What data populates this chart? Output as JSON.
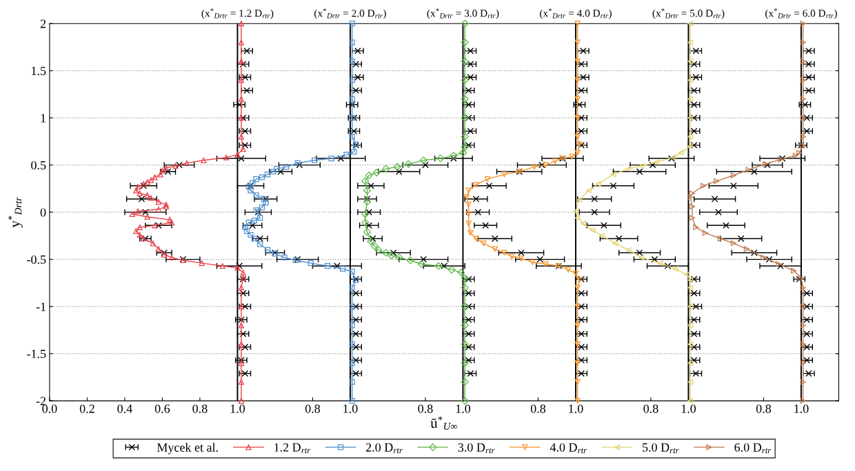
{
  "chart_data": [
    {
      "type": "line",
      "title": "(x$^{*}$$_{Drtr}$ = 1.2 D$_{rtr}$)",
      "xlabel": "ū$^{*}$$_{U∞}$",
      "ylabel": "y$^{*}$$_{Drtr}$",
      "xlim": [
        0,
        4.2
      ],
      "ylim": [
        -2,
        2
      ],
      "xticks": [
        {
          "value": 0,
          "label": "0.0"
        },
        {
          "value": 0.2,
          "label": "0.2"
        },
        {
          "value": 0.4,
          "label": "0.4"
        },
        {
          "value": 0.6,
          "label": "0.6"
        },
        {
          "value": 0.8,
          "label": "0.8"
        },
        {
          "value": 1.0,
          "label": "1.0"
        }
      ],
      "yticks": [
        -2,
        -1.5,
        -1,
        -0.5,
        0,
        0.5,
        1,
        1.5,
        2
      ],
      "grid": "y",
      "legend": "bottom",
      "line_style": "solid",
      "ref_lines": [
        {
          "axis": "x",
          "value": 1.0,
          "color": "#000000"
        }
      ],
      "series": [
        {
          "name": "Mycek et al.",
          "type": "scatter",
          "marker": "cross",
          "color": "#000000",
          "x": [
            1.05,
            1.03,
            1.04,
            1.05,
            1.01,
            1.03,
            1.04,
            1.04,
            1.02,
            0.69,
            0.63,
            0.5,
            0.49,
            0.51,
            0.58,
            0.51,
            0.61,
            0.71,
            1.01,
            1.03,
            1.03,
            1.04,
            1.02,
            1.03,
            1.04,
            1.02,
            1.04
          ],
          "values": [
            1.71,
            1.57,
            1.43,
            1.29,
            1.14,
            1.0,
            0.86,
            0.71,
            0.57,
            0.5,
            0.43,
            0.28,
            0.14,
            0,
            -0.14,
            -0.28,
            -0.43,
            -0.5,
            -0.57,
            -0.71,
            -0.86,
            -1.0,
            -1.14,
            -1.29,
            -1.43,
            -1.57,
            -1.71
          ],
          "xerrors": [
            0.03,
            0.03,
            0.03,
            0.03,
            0.03,
            0.03,
            0.03,
            0.03,
            0.13,
            0.08,
            0.04,
            0.07,
            0.08,
            0.11,
            0.07,
            0.03,
            0.04,
            0.09,
            0.12,
            0.03,
            0.03,
            0.03,
            0.03,
            0.03,
            0.03,
            0.03,
            0.03
          ]
        },
        {
          "name": "1.2 D$_{rtr}$",
          "marker": "triangle",
          "color": "#e8424a",
          "x": [
            1.02,
            1.02,
            1.02,
            1.02,
            1.02,
            1.02,
            1.02,
            1.03,
            1.0,
            0.94,
            0.82,
            0.73,
            0.67,
            0.62,
            0.6,
            0.59,
            0.56,
            0.54,
            0.52,
            0.5,
            0.47,
            0.46,
            0.48,
            0.52,
            0.54,
            0.58,
            0.62,
            0.62,
            0.58,
            0.47,
            0.44,
            0.52,
            0.64,
            0.65,
            0.56,
            0.48,
            0.46,
            0.48,
            0.5,
            0.55,
            0.58,
            0.61,
            0.65,
            0.71,
            0.81,
            0.92,
            1.0,
            1.03,
            1.03,
            1.02,
            1.02,
            1.02,
            1.02,
            1.02,
            1.02,
            1.02
          ],
          "values": [
            2,
            1.8,
            1.6,
            1.4,
            1.2,
            1,
            0.8,
            0.67,
            0.61,
            0.58,
            0.55,
            0.52,
            0.49,
            0.47,
            0.44,
            0.4,
            0.37,
            0.34,
            0.32,
            0.3,
            0.27,
            0.23,
            0.2,
            0.18,
            0.15,
            0.11,
            0.08,
            0.06,
            0.03,
            0.01,
            -0.02,
            -0.05,
            -0.08,
            -0.11,
            -0.14,
            -0.16,
            -0.2,
            -0.24,
            -0.28,
            -0.33,
            -0.39,
            -0.45,
            -0.48,
            -0.51,
            -0.54,
            -0.57,
            -0.59,
            -0.64,
            -0.7,
            -0.8,
            -1,
            -1.2,
            -1.4,
            -1.6,
            -1.8,
            -2
          ]
        }
      ]
    },
    {
      "type": "line",
      "title": "(x$^{*}$$_{Drtr}$ = 2.0 D$_{rtr}$)",
      "tick_labels": "x",
      "xlim": [
        -0.6,
        3.6
      ],
      "ylim": [
        -2,
        2
      ],
      "xticks": [
        {
          "value": 0.8,
          "label": "0.8"
        },
        {
          "value": 1.0,
          "label": "1.0"
        }
      ],
      "yticks": [
        -2,
        -1.5,
        -1,
        -0.5,
        0,
        0.5,
        1,
        1.5,
        2
      ],
      "line_style": "solid",
      "ref_lines": [
        {
          "axis": "x",
          "value": 1.0,
          "color": "#000000"
        }
      ],
      "series": [
        {
          "type": "scatter",
          "marker": "cross",
          "color": "#000000",
          "x": [
            1.04,
            1.03,
            1.04,
            1.03,
            1.01,
            1.02,
            1.02,
            1.03,
            0.95,
            0.73,
            0.63,
            0.47,
            0.55,
            0.51,
            0.48,
            0.52,
            0.6,
            0.72,
            0.93,
            1.03,
            1.03,
            1.03,
            1.03,
            1.03,
            1.03,
            1.03,
            1.03
          ],
          "values": [
            1.71,
            1.57,
            1.43,
            1.29,
            1.14,
            1.0,
            0.86,
            0.71,
            0.57,
            0.5,
            0.43,
            0.28,
            0.14,
            0,
            -0.14,
            -0.28,
            -0.43,
            -0.5,
            -0.57,
            -0.71,
            -0.86,
            -1.0,
            -1.14,
            -1.29,
            -1.43,
            -1.57,
            -1.71
          ],
          "xerrors": [
            0.03,
            0.03,
            0.03,
            0.03,
            0.03,
            0.03,
            0.03,
            0.03,
            0.13,
            0.11,
            0.06,
            0.07,
            0.06,
            0.07,
            0.05,
            0.04,
            0.05,
            0.11,
            0.13,
            0.03,
            0.03,
            0.03,
            0.03,
            0.03,
            0.03,
            0.03,
            0.03
          ]
        },
        {
          "name": "2.0 D$_{rtr}$",
          "marker": "square",
          "color": "#4f8fcc",
          "x": [
            1.01,
            1.01,
            1.01,
            1.01,
            1.01,
            1.01,
            1.01,
            1.03,
            1.02,
            0.98,
            0.9,
            0.81,
            0.72,
            0.66,
            0.61,
            0.59,
            0.56,
            0.53,
            0.5,
            0.48,
            0.46,
            0.47,
            0.5,
            0.54,
            0.55,
            0.53,
            0.5,
            0.52,
            0.49,
            0.46,
            0.44,
            0.45,
            0.47,
            0.49,
            0.52,
            0.56,
            0.6,
            0.65,
            0.71,
            0.79,
            0.88,
            0.96,
            1.01,
            1.03,
            1.01,
            1.01,
            1.01,
            1.01,
            1.01,
            1.01,
            1.01
          ],
          "values": [
            2,
            1.8,
            1.6,
            1.4,
            1.2,
            1,
            0.8,
            0.72,
            0.64,
            0.61,
            0.57,
            0.55,
            0.52,
            0.48,
            0.46,
            0.43,
            0.4,
            0.37,
            0.35,
            0.31,
            0.27,
            0.23,
            0.18,
            0.14,
            0.1,
            0.05,
            0.02,
            -0.06,
            -0.09,
            -0.11,
            -0.16,
            -0.2,
            -0.24,
            -0.28,
            -0.34,
            -0.4,
            -0.44,
            -0.48,
            -0.51,
            -0.54,
            -0.57,
            -0.6,
            -0.63,
            -0.72,
            -0.8,
            -1,
            -1.2,
            -1.4,
            -1.6,
            -1.8,
            -2
          ]
        }
      ]
    },
    {
      "type": "line",
      "title": "(x$^{*}$$_{Drtr}$ = 3.0 D$_{rtr}$)",
      "tick_labels": "x",
      "xlim": [
        -1.2,
        3.0
      ],
      "ylim": [
        -2,
        2
      ],
      "xticks": [
        {
          "value": 0.8,
          "label": "0.8"
        },
        {
          "value": 1.0,
          "label": "1.0"
        }
      ],
      "yticks": [
        -2,
        -1.5,
        -1,
        -0.5,
        0,
        0.5,
        1,
        1.5,
        2
      ],
      "line_style": "solid",
      "ref_lines": [
        {
          "axis": "x",
          "value": 1.0,
          "color": "#000000"
        }
      ],
      "series": [
        {
          "type": "scatter",
          "marker": "cross",
          "color": "#000000",
          "x": [
            1.04,
            1.04,
            1.04,
            1.03,
            1.03,
            1.03,
            1.04,
            1.03,
            0.95,
            0.8,
            0.66,
            0.51,
            0.49,
            0.5,
            0.5,
            0.52,
            0.63,
            0.79,
            0.9,
            1.03,
            1.03,
            1.03,
            1.03,
            1.03,
            1.03,
            1.03,
            1.04
          ],
          "values": [
            1.71,
            1.57,
            1.43,
            1.29,
            1.14,
            1.0,
            0.86,
            0.71,
            0.57,
            0.5,
            0.43,
            0.28,
            0.14,
            0,
            -0.14,
            -0.28,
            -0.43,
            -0.5,
            -0.57,
            -0.71,
            -0.86,
            -1.0,
            -1.14,
            -1.29,
            -1.43,
            -1.57,
            -1.71
          ],
          "xerrors": [
            0.03,
            0.03,
            0.03,
            0.03,
            0.03,
            0.03,
            0.03,
            0.03,
            0.1,
            0.12,
            0.11,
            0.07,
            0.05,
            0.06,
            0.05,
            0.05,
            0.09,
            0.13,
            0.11,
            0.03,
            0.03,
            0.03,
            0.03,
            0.03,
            0.03,
            0.03,
            0.03
          ]
        },
        {
          "name": "3.0 D$_{rtr}$",
          "marker": "diamond",
          "color": "#5db648",
          "x": [
            1.01,
            1.01,
            1.01,
            1.01,
            1.01,
            1.01,
            1.01,
            1.01,
            1.0,
            0.95,
            0.88,
            0.79,
            0.71,
            0.65,
            0.59,
            0.54,
            0.5,
            0.48,
            0.49,
            0.49,
            0.48,
            0.48,
            0.49,
            0.51,
            0.53,
            0.55,
            0.59,
            0.62,
            0.66,
            0.72,
            0.78,
            0.87,
            0.94,
            0.99,
            1.01,
            1.01,
            1.01,
            1.01,
            1.01,
            1.01,
            1.01,
            1.01
          ],
          "values": [
            2,
            1.8,
            1.6,
            1.4,
            1.2,
            1,
            0.8,
            0.69,
            0.63,
            0.6,
            0.57,
            0.55,
            0.51,
            0.48,
            0.46,
            0.42,
            0.39,
            0.33,
            0.23,
            0.11,
            -0.02,
            -0.11,
            -0.21,
            -0.31,
            -0.36,
            -0.4,
            -0.43,
            -0.46,
            -0.48,
            -0.51,
            -0.55,
            -0.57,
            -0.61,
            -0.64,
            -0.7,
            -0.8,
            -1,
            -1.2,
            -1.4,
            -1.6,
            -1.8,
            -2
          ]
        }
      ]
    },
    {
      "type": "line",
      "title": "(x$^{*}$$_{Drtr}$ = 4.0 D$_{rtr}$)",
      "tick_labels": "x",
      "xlim": [
        -1.8,
        2.4
      ],
      "ylim": [
        -2,
        2
      ],
      "xticks": [
        {
          "value": 0.8,
          "label": "0.8"
        },
        {
          "value": 1.0,
          "label": "1.0"
        }
      ],
      "yticks": [
        -2,
        -1.5,
        -1,
        -0.5,
        0,
        0.5,
        1,
        1.5,
        2
      ],
      "line_style": "solid",
      "ref_lines": [
        {
          "axis": "x",
          "value": 1.0,
          "color": "#000000"
        }
      ],
      "series": [
        {
          "type": "scatter",
          "marker": "cross",
          "color": "#000000",
          "x": [
            1.04,
            1.03,
            1.04,
            1.03,
            1.02,
            1.03,
            1.03,
            1.03,
            0.93,
            0.82,
            0.7,
            0.54,
            0.47,
            0.48,
            0.52,
            0.57,
            0.71,
            0.81,
            0.91,
            1.03,
            1.03,
            1.03,
            1.03,
            1.03,
            1.03,
            1.03,
            1.03
          ],
          "values": [
            1.71,
            1.57,
            1.43,
            1.29,
            1.14,
            1.0,
            0.86,
            0.71,
            0.57,
            0.5,
            0.43,
            0.28,
            0.14,
            0,
            -0.14,
            -0.28,
            -0.43,
            -0.5,
            -0.57,
            -0.71,
            -0.86,
            -1.0,
            -1.14,
            -1.29,
            -1.43,
            -1.57,
            -1.71
          ],
          "xerrors": [
            0.03,
            0.03,
            0.03,
            0.03,
            0.03,
            0.03,
            0.03,
            0.03,
            0.11,
            0.13,
            0.12,
            0.09,
            0.06,
            0.06,
            0.06,
            0.09,
            0.12,
            0.13,
            0.12,
            0.03,
            0.03,
            0.03,
            0.03,
            0.03,
            0.03,
            0.03,
            0.03
          ]
        },
        {
          "name": "4.0 D$_{rtr}$",
          "marker": "triangle-down",
          "color": "#f7942b",
          "x": [
            1.01,
            1.01,
            1.01,
            1.01,
            1.01,
            1.01,
            1.01,
            1.02,
            1.01,
            0.98,
            0.93,
            0.89,
            0.84,
            0.78,
            0.7,
            0.62,
            0.53,
            0.47,
            0.43,
            0.42,
            0.43,
            0.43,
            0.43,
            0.44,
            0.47,
            0.51,
            0.57,
            0.62,
            0.66,
            0.71,
            0.77,
            0.84,
            0.91,
            0.96,
            1.0,
            1.02,
            1.01,
            1.01,
            1.01,
            1.01,
            1.01,
            1.01,
            1.01
          ],
          "values": [
            2,
            1.8,
            1.6,
            1.4,
            1.2,
            1,
            0.8,
            0.72,
            0.63,
            0.59,
            0.57,
            0.54,
            0.5,
            0.48,
            0.43,
            0.4,
            0.35,
            0.29,
            0.23,
            0.16,
            0.08,
            -0.02,
            -0.12,
            -0.22,
            -0.28,
            -0.33,
            -0.39,
            -0.43,
            -0.47,
            -0.49,
            -0.53,
            -0.55,
            -0.57,
            -0.61,
            -0.65,
            -0.72,
            -0.8,
            -1,
            -1.2,
            -1.4,
            -1.6,
            -1.8,
            -2
          ]
        }
      ]
    },
    {
      "type": "line",
      "title": "(x$^{*}$$_{Drtr}$ = 5.0 D$_{rtr}$)",
      "tick_labels": "x",
      "xlim": [
        -2.4,
        1.8
      ],
      "ylim": [
        -2,
        2
      ],
      "xticks": [
        {
          "value": 0.8,
          "label": "0.8"
        },
        {
          "value": 1.0,
          "label": "1.0"
        }
      ],
      "yticks": [
        -2,
        -1.5,
        -1,
        -0.5,
        0,
        0.5,
        1,
        1.5,
        2
      ],
      "line_style": "solid",
      "ref_lines": [
        {
          "axis": "x",
          "value": 1.0,
          "color": "#000000"
        }
      ],
      "series": [
        {
          "type": "scatter",
          "marker": "cross",
          "color": "#000000",
          "x": [
            1.04,
            1.03,
            1.04,
            1.03,
            1.03,
            1.03,
            1.03,
            1.03,
            0.91,
            0.81,
            0.74,
            0.6,
            0.5,
            0.5,
            0.55,
            0.63,
            0.74,
            0.82,
            0.89,
            1.03,
            1.03,
            1.04,
            1.03,
            1.03,
            1.03,
            1.03,
            1.04
          ],
          "values": [
            1.71,
            1.57,
            1.43,
            1.29,
            1.14,
            1.0,
            0.86,
            0.71,
            0.57,
            0.5,
            0.43,
            0.28,
            0.14,
            0,
            -0.14,
            -0.28,
            -0.43,
            -0.5,
            -0.57,
            -0.71,
            -0.86,
            -1.0,
            -1.14,
            -1.29,
            -1.43,
            -1.57,
            -1.71
          ],
          "xerrors": [
            0.03,
            0.03,
            0.03,
            0.03,
            0.03,
            0.03,
            0.03,
            0.03,
            0.12,
            0.12,
            0.14,
            0.11,
            0.09,
            0.08,
            0.09,
            0.1,
            0.11,
            0.11,
            0.11,
            0.03,
            0.03,
            0.03,
            0.03,
            0.03,
            0.03,
            0.03,
            0.03
          ]
        },
        {
          "name": "5.0 D$_{rtr}$",
          "marker": "triangle-left",
          "color": "#e3d577",
          "x": [
            1.01,
            1.01,
            1.01,
            1.01,
            1.01,
            1.01,
            1.01,
            1.01,
            0.96,
            0.92,
            0.83,
            0.75,
            0.68,
            0.6,
            0.52,
            0.47,
            0.42,
            0.4,
            0.41,
            0.44,
            0.49,
            0.54,
            0.61,
            0.68,
            0.75,
            0.85,
            0.93,
            0.99,
            1.01,
            1.01,
            1.01,
            1.01,
            1.01,
            1.01,
            1.01,
            1.01
          ],
          "values": [
            2,
            1.8,
            1.6,
            1.4,
            1.2,
            1,
            0.8,
            0.7,
            0.63,
            0.58,
            0.53,
            0.49,
            0.46,
            0.4,
            0.3,
            0.23,
            0.13,
            0.01,
            -0.06,
            -0.12,
            -0.19,
            -0.25,
            -0.33,
            -0.4,
            -0.48,
            -0.54,
            -0.6,
            -0.66,
            -0.72,
            -0.8,
            -1,
            -1.2,
            -1.4,
            -1.6,
            -1.8,
            -2
          ]
        }
      ]
    },
    {
      "type": "line",
      "title": "(x$^{*}$$_{Drtr}$ = 6.0 D$_{rtr}$)",
      "tick_labels": "x",
      "xlim": [
        -3.0,
        1.2
      ],
      "ylim": [
        -2,
        2
      ],
      "xticks": [
        {
          "value": 0.8,
          "label": "0.8"
        },
        {
          "value": 1.0,
          "label": "1.0"
        }
      ],
      "yticks": [
        -2,
        -1.5,
        -1,
        -0.5,
        0,
        0.5,
        1,
        1.5,
        2
      ],
      "line_style": "solid",
      "ref_lines": [
        {
          "axis": "x",
          "value": 1.0,
          "color": "#000000"
        }
      ],
      "series": [
        {
          "type": "scatter",
          "marker": "cross",
          "color": "#000000",
          "x": [
            1.04,
            1.04,
            1.04,
            1.04,
            1.02,
            1.03,
            1.03,
            1.0,
            0.9,
            0.82,
            0.75,
            0.64,
            0.54,
            0.56,
            0.6,
            0.68,
            0.75,
            0.83,
            0.89,
            0.99,
            1.03,
            1.03,
            1.03,
            1.03,
            1.03,
            1.03,
            1.04
          ],
          "values": [
            1.71,
            1.57,
            1.43,
            1.29,
            1.14,
            1.0,
            0.86,
            0.71,
            0.57,
            0.5,
            0.43,
            0.28,
            0.14,
            0,
            -0.14,
            -0.28,
            -0.43,
            -0.5,
            -0.57,
            -0.71,
            -0.86,
            -1.0,
            -1.14,
            -1.29,
            -1.43,
            -1.57,
            -1.71
          ],
          "xerrors": [
            0.03,
            0.03,
            0.03,
            0.03,
            0.03,
            0.03,
            0.03,
            0.03,
            0.12,
            0.08,
            0.2,
            0.13,
            0.11,
            0.1,
            0.1,
            0.11,
            0.12,
            0.12,
            0.11,
            0.03,
            0.03,
            0.03,
            0.03,
            0.03,
            0.03,
            0.03,
            0.03
          ]
        },
        {
          "name": "6.0 D$_{rtr}$",
          "marker": "triangle-right",
          "color": "#c07a4e",
          "x": [
            1.01,
            1.01,
            1.01,
            1.01,
            1.01,
            1.01,
            1.01,
            1.01,
            0.99,
            0.97,
            0.89,
            0.81,
            0.72,
            0.64,
            0.55,
            0.48,
            0.42,
            0.41,
            0.42,
            0.42,
            0.44,
            0.49,
            0.57,
            0.64,
            0.71,
            0.8,
            0.88,
            0.96,
            1.0,
            1.01,
            1.01,
            1.01,
            1.01,
            1.01,
            1.01,
            1.01
          ],
          "values": [
            2,
            1.8,
            1.6,
            1.4,
            1.2,
            1,
            0.8,
            0.7,
            0.63,
            0.6,
            0.56,
            0.51,
            0.45,
            0.39,
            0.33,
            0.28,
            0.2,
            0.16,
            0.06,
            -0.06,
            -0.16,
            -0.22,
            -0.28,
            -0.33,
            -0.39,
            -0.48,
            -0.55,
            -0.62,
            -0.7,
            -0.8,
            -1,
            -1.2,
            -1.4,
            -1.6,
            -1.8,
            -2
          ]
        }
      ]
    }
  ]
}
